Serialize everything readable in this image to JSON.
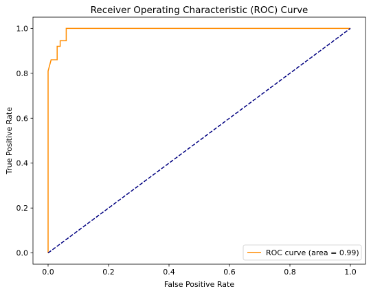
{
  "chart_data": {
    "type": "line",
    "title": "Receiver Operating Characteristic (ROC) Curve",
    "xlabel": "False Positive Rate",
    "ylabel": "True Positive Rate",
    "xlim": [
      -0.05,
      1.05
    ],
    "ylim": [
      -0.05,
      1.05
    ],
    "xticks": [
      0.0,
      0.2,
      0.4,
      0.6,
      0.8,
      1.0
    ],
    "yticks": [
      0.0,
      0.2,
      0.4,
      0.6,
      0.8,
      1.0
    ],
    "xtick_labels": [
      "0.0",
      "0.2",
      "0.4",
      "0.6",
      "0.8",
      "1.0"
    ],
    "ytick_labels": [
      "0.0",
      "0.2",
      "0.4",
      "0.6",
      "0.8",
      "1.0"
    ],
    "grid": false,
    "legend_position": "lower-right",
    "series": [
      {
        "name": "ROC curve (area = 0.99)",
        "color": "#ff8c00",
        "style": "solid",
        "x": [
          0.0,
          0.0,
          0.01,
          0.03,
          0.03,
          0.04,
          0.04,
          0.06,
          0.06,
          1.0
        ],
        "y": [
          0.0,
          0.81,
          0.86,
          0.86,
          0.92,
          0.92,
          0.945,
          0.945,
          1.0,
          1.0
        ]
      },
      {
        "color": "#000080",
        "style": "dashed",
        "x": [
          0.0,
          1.0
        ],
        "y": [
          0.0,
          1.0
        ]
      }
    ]
  }
}
